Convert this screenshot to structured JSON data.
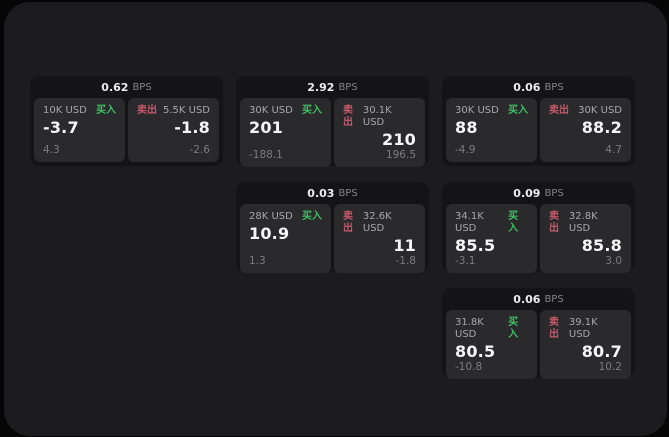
{
  "colors": {
    "buy_green": "#3fbf63",
    "sell_red": "#c4596a"
  },
  "labels": {
    "bps_unit": "BPS",
    "buy": "买入",
    "sell": "卖出"
  },
  "cards": [
    {
      "col": 1,
      "row": 1,
      "bps": "0.62",
      "buy": {
        "size": "10K USD",
        "price": "-3.7",
        "delta": "4.3"
      },
      "sell": {
        "size": "5.5K USD",
        "price": "-1.8",
        "delta": "-2.6"
      }
    },
    {
      "col": 2,
      "row": 1,
      "bps": "2.92",
      "buy": {
        "size": "30K USD",
        "price": "201",
        "delta": "-188.1"
      },
      "sell": {
        "size": "30.1K USD",
        "price": "210",
        "delta": "196.5"
      }
    },
    {
      "col": 3,
      "row": 1,
      "bps": "0.06",
      "buy": {
        "size": "30K USD",
        "price": "88",
        "delta": "-4.9"
      },
      "sell": {
        "size": "30K USD",
        "price": "88.2",
        "delta": "4.7"
      }
    },
    {
      "col": 2,
      "row": 2,
      "bps": "0.03",
      "buy": {
        "size": "28K USD",
        "price": "10.9",
        "delta": "1.3"
      },
      "sell": {
        "size": "32.6K USD",
        "price": "11",
        "delta": "-1.8"
      }
    },
    {
      "col": 3,
      "row": 2,
      "bps": "0.09",
      "buy": {
        "size": "34.1K USD",
        "price": "85.5",
        "delta": "-3.1"
      },
      "sell": {
        "size": "32.8K USD",
        "price": "85.8",
        "delta": "3.0"
      }
    },
    {
      "col": 3,
      "row": 3,
      "bps": "0.06",
      "buy": {
        "size": "31.8K USD",
        "price": "80.5",
        "delta": "-10.8"
      },
      "sell": {
        "size": "39.1K USD",
        "price": "80.7",
        "delta": "10.2"
      }
    }
  ]
}
